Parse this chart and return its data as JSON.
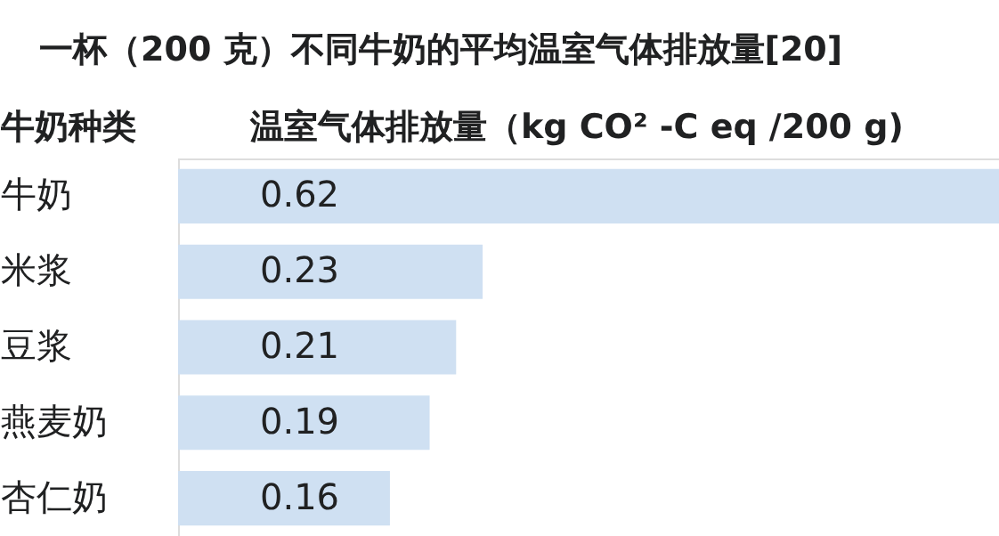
{
  "chart_data": {
    "type": "bar",
    "orientation": "horizontal",
    "title": "一杯（200 克）不同牛奶的平均温室气体排放量[20]",
    "ylabel": "牛奶种类",
    "xlabel": "温室气体排放量（kg CO² -C eq /200 g)",
    "categories": [
      "牛奶",
      "米浆",
      "豆浆",
      "燕麦奶",
      "杏仁奶"
    ],
    "values": [
      0.62,
      0.23,
      0.21,
      0.19,
      0.16
    ],
    "color": "#cfe0f2",
    "data_labels": true,
    "grid": false
  }
}
